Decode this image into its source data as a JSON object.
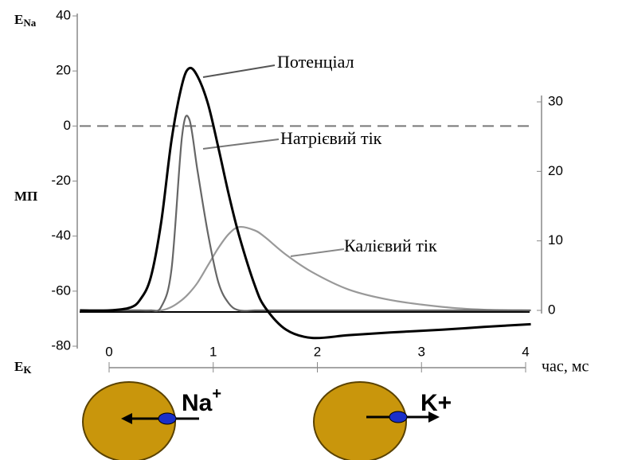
{
  "chart_data": {
    "type": "line",
    "x": [
      -0.28,
      0,
      0.2,
      0.3,
      0.4,
      0.5,
      0.6,
      0.7,
      0.77,
      0.85,
      0.95,
      1.05,
      1.15,
      1.25,
      1.4,
      1.5,
      1.7,
      1.95,
      2.3,
      2.7,
      3.2,
      3.6,
      4.05
    ],
    "series": [
      {
        "name": "Потенціал",
        "color": "#000000",
        "values": [
          -67,
          -67,
          -66,
          -63,
          -55,
          -35,
          -5,
          15,
          21,
          18,
          8,
          -8,
          -25,
          -40,
          -58,
          -66,
          -74,
          -77,
          -76,
          -75,
          -74,
          -73,
          -72
        ]
      },
      {
        "name": "Натрієвий тік",
        "color": "#666666",
        "axis": "y2",
        "values": [
          0,
          0,
          0,
          0,
          0,
          0.5,
          6,
          25,
          27.5,
          20,
          11,
          4,
          1,
          0,
          0,
          0,
          0,
          0,
          0,
          0,
          0,
          0,
          0
        ]
      },
      {
        "name": "Калієвий тік",
        "color": "#999999",
        "axis": "y2",
        "values": [
          0,
          0,
          0,
          0,
          0,
          0,
          0.5,
          1.5,
          2.5,
          4,
          6.5,
          9,
          11,
          12,
          11.5,
          10.5,
          8,
          5.5,
          3,
          1.5,
          0.5,
          0.1,
          0
        ]
      }
    ],
    "xlim": [
      0,
      4
    ],
    "xticks": [
      0,
      1,
      2,
      3,
      4
    ],
    "ylim": [
      -80,
      40
    ],
    "yticks": [
      40,
      20,
      0,
      -20,
      -40,
      -60,
      -80
    ],
    "y2lim": [
      0,
      30
    ],
    "y2ticks": [
      30,
      20,
      10,
      0
    ],
    "y_label": "МП",
    "top_label": {
      "main": "E",
      "sub": "Na"
    },
    "bottom_label": {
      "main": "E",
      "sub": "K"
    },
    "x_label": "час, мс",
    "ions": [
      {
        "name": "Na",
        "charge": "+"
      },
      {
        "name": "K",
        "charge": "+"
      }
    ]
  }
}
